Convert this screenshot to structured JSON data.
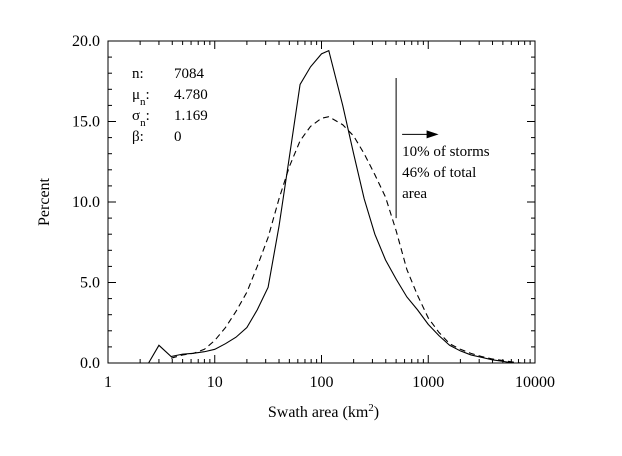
{
  "chart_data": {
    "type": "line",
    "xlabel": "Swath area (km",
    "xlabel_sup": "2",
    "xlabel_suffix": ")",
    "ylabel": "Percent",
    "x_scale": "log",
    "xlim": [
      1,
      10000
    ],
    "ylim": [
      0,
      20
    ],
    "x_ticks": [
      "1",
      "10",
      "100",
      "1000",
      "10000"
    ],
    "x_tick_values": [
      1,
      10,
      100,
      1000,
      10000
    ],
    "y_ticks": [
      "0.0",
      "5.0",
      "10.0",
      "15.0",
      "20.0"
    ],
    "y_tick_values": [
      0,
      5,
      10,
      15,
      20
    ],
    "series": [
      {
        "style": "solid",
        "x": [
          2.4,
          3,
          3.9,
          5,
          6.3,
          8,
          10,
          12.6,
          15.8,
          20,
          25,
          31.6,
          40,
          50,
          63,
          79,
          100,
          117,
          158,
          200,
          251,
          316,
          398,
          501,
          631,
          794,
          1000,
          1259,
          1585,
          2000,
          2512,
          3162,
          3981,
          5012,
          6310
        ],
        "y": [
          0.0,
          1.1,
          0.4,
          0.55,
          0.6,
          0.7,
          0.85,
          1.2,
          1.6,
          2.2,
          3.3,
          4.7,
          8.5,
          12.8,
          17.3,
          18.4,
          19.2,
          19.4,
          16.0,
          13.0,
          10.2,
          8.0,
          6.4,
          5.2,
          4.1,
          3.3,
          2.4,
          1.7,
          1.1,
          0.75,
          0.5,
          0.35,
          0.2,
          0.1,
          0.0
        ]
      },
      {
        "style": "dashed",
        "x": [
          3.9,
          5,
          6.3,
          8,
          10,
          12.6,
          15.8,
          20,
          25,
          31.6,
          40,
          50,
          63,
          79,
          100,
          117,
          158,
          200,
          251,
          316,
          398,
          501,
          631,
          794,
          1000,
          1259,
          1585,
          2000,
          2512,
          3162,
          3981,
          5012,
          6310,
          7500
        ],
        "y": [
          0.3,
          0.5,
          0.6,
          0.85,
          1.4,
          2.2,
          3.2,
          4.4,
          6.0,
          7.8,
          10.2,
          12.2,
          13.8,
          14.7,
          15.2,
          15.3,
          14.8,
          14.1,
          13.0,
          11.7,
          10.3,
          8.2,
          5.8,
          4.2,
          2.8,
          1.9,
          1.2,
          0.85,
          0.6,
          0.4,
          0.25,
          0.15,
          0.05,
          0.0
        ]
      }
    ],
    "stats": [
      {
        "label": "n:",
        "value": "7084"
      },
      {
        "label": "μ",
        "sub": "n",
        "suffix": ":",
        "value": "4.780"
      },
      {
        "label": "σ",
        "sub": "n",
        "suffix": ":",
        "value": "1.169"
      },
      {
        "label": "β:",
        "value": "0"
      }
    ],
    "annotation": {
      "lines": [
        "10% of storms",
        "46% of total",
        "area"
      ],
      "marker_x": 500,
      "marker_y_top": 17.7,
      "marker_y_bottom": 9.0,
      "arrow_y": 14.2,
      "arrow_x_end": 1250
    }
  }
}
